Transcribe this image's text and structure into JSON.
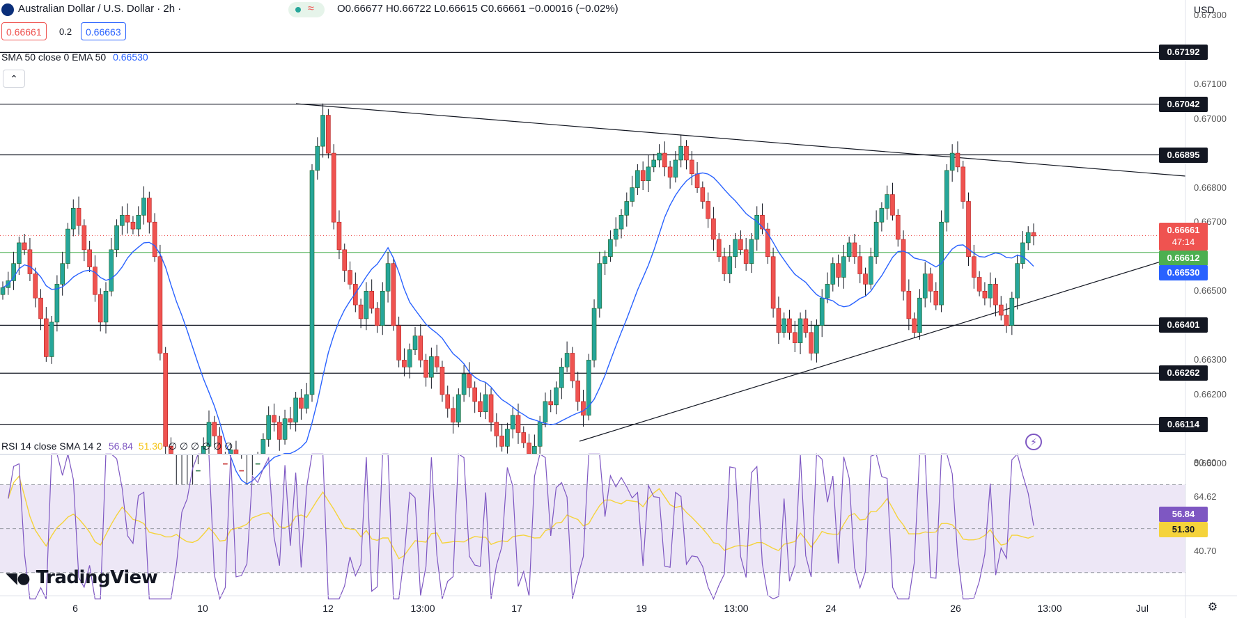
{
  "header": {
    "symbol_title": "Australian Dollar / U.S. Dollar · 2h ·",
    "ohlc": "O0.66677 H0.66722 L0.66615 C0.66661 −0.00016 (−0.02%)",
    "bid": "0.66661",
    "spread": "0.2",
    "ask": "0.66663",
    "currency": "USD"
  },
  "indicators": {
    "sma_label": "SMA 50 close 0 EMA 50",
    "sma_value": "0.66530",
    "rsi_label": "RSI 14 close SMA 14 2",
    "rsi_value": "56.84",
    "rsi_sma_value": "51.30",
    "rsi_extra": "∅ ∅ ∅ ∅ ∅ ∅"
  },
  "price_axis": {
    "ticks": [
      "0.67300",
      "0.67100",
      "0.67000",
      "0.66800",
      "0.66700",
      "0.66500",
      "0.66300",
      "0.66200",
      "0.66000"
    ],
    "levels": [
      "0.67192",
      "0.67042",
      "0.66895",
      "0.66401",
      "0.66262",
      "0.66114"
    ],
    "current_price": "0.66661",
    "countdown": "47:14",
    "green_line": "0.66612",
    "sma_tag": "0.66530"
  },
  "rsi_axis": {
    "ticks": [
      "80.00",
      "64.62",
      "40.70"
    ],
    "value_tag": "56.84",
    "sma_tag": "51.30"
  },
  "time_axis": [
    "6",
    "10",
    "12",
    "13:00",
    "17",
    "19",
    "13:00",
    "24",
    "26",
    "13:00",
    "Jul"
  ],
  "branding": {
    "logo_text": "TradingView"
  },
  "colors": {
    "up": "#26a69a",
    "down": "#ef5350",
    "sma": "#2962ff",
    "rsi": "#7e57c2",
    "rsi_sma": "#f5d33b",
    "green_line": "#4caf50"
  },
  "chart_data": {
    "type": "candlestick",
    "x": [
      "6",
      "10",
      "12",
      "13:00",
      "17",
      "19",
      "13:00",
      "24",
      "26",
      "13:00",
      "Jul"
    ],
    "horizontal_levels": [
      0.67192,
      0.67042,
      0.66895,
      0.66401,
      0.66262,
      0.66114
    ],
    "ylim": [
      0.6598,
      0.6734
    ],
    "rsi_ylim": [
      20,
      85
    ]
  }
}
